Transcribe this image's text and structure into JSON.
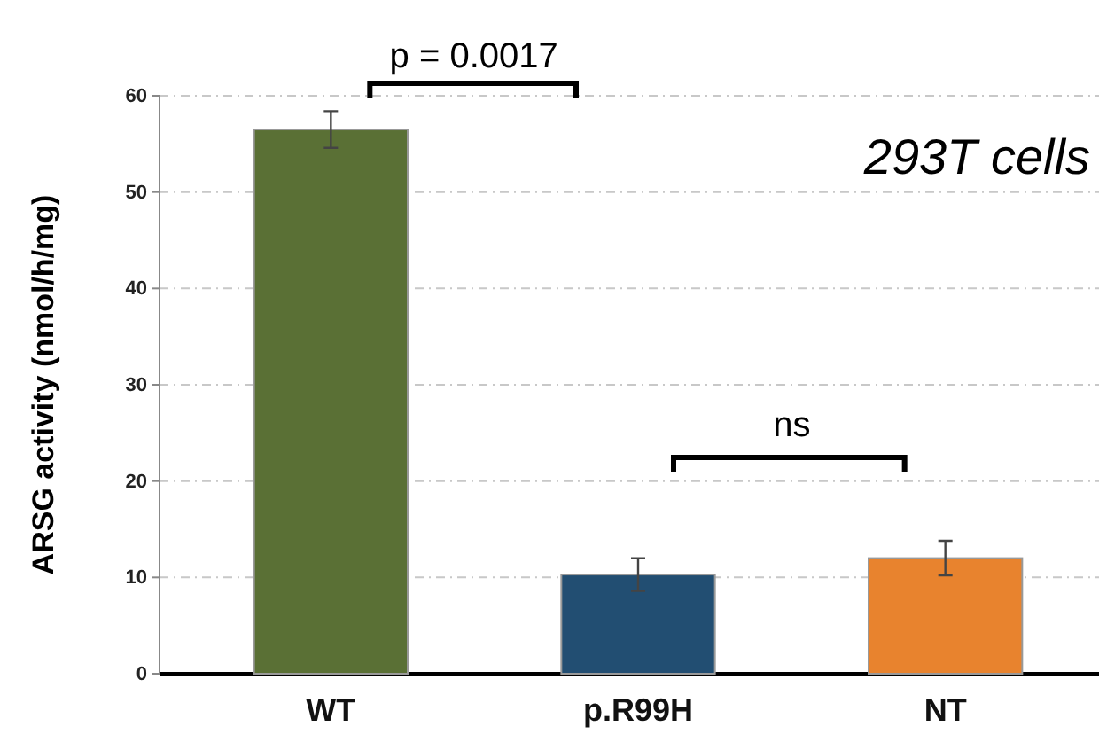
{
  "chart_data": {
    "type": "bar",
    "ylabel": "ARSG activity (nmol/h/mg)",
    "categories": [
      "WT",
      "p.R99H",
      "NT"
    ],
    "values": [
      56.5,
      10.3,
      12.0
    ],
    "colors": [
      "#5a7035",
      "#224e72",
      "#e8832e"
    ],
    "errors": [
      1.9,
      1.7,
      1.8
    ],
    "ylim": [
      0,
      60
    ],
    "yticks": [
      0,
      10,
      20,
      30,
      40,
      50,
      60
    ],
    "grid": "y",
    "annotations": [
      {
        "text": "p = 0.0017"
      },
      {
        "text": "ns"
      },
      {
        "text": "293T cells"
      }
    ]
  }
}
